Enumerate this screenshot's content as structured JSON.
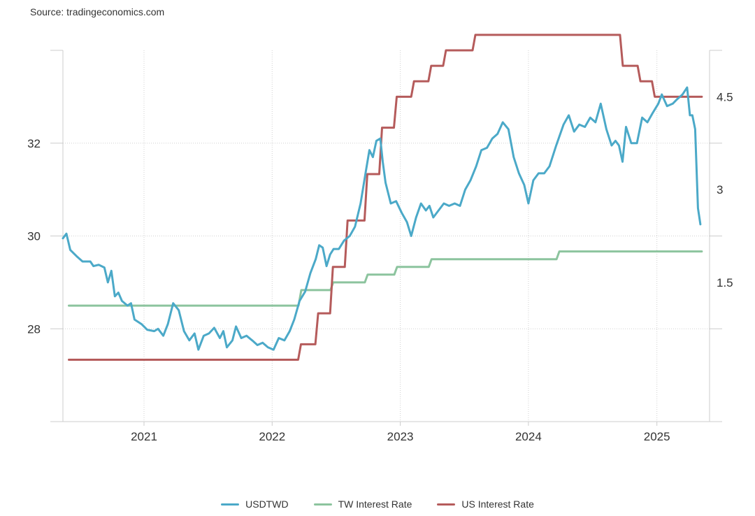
{
  "source": "Source: tradingeconomics.com",
  "chart_data": {
    "type": "line",
    "x_ticks": [
      "2021",
      "2022",
      "2023",
      "2024",
      "2025"
    ],
    "left_axis": {
      "ticks": [
        28,
        30,
        32
      ],
      "tick_labels": [
        "28",
        "30",
        "32"
      ],
      "ylim": [
        26,
        34
      ]
    },
    "right_axis": {
      "ticks": [
        1.5,
        3,
        4.5
      ],
      "tick_labels": [
        "1.5",
        "3",
        "4.5"
      ],
      "ylim": [
        -0.75,
        5.25
      ]
    },
    "xlim": [
      "2020-05-15",
      "2025-05-31"
    ],
    "grid": true,
    "legend_position": "bottom",
    "series": [
      {
        "name": "USDTWD",
        "axis": "left",
        "color": "#4ba9c8",
        "points": [
          [
            "2020-05-15",
            29.95
          ],
          [
            "2020-05-25",
            30.05
          ],
          [
            "2020-06-05",
            29.7
          ],
          [
            "2020-06-25",
            29.55
          ],
          [
            "2020-07-10",
            29.45
          ],
          [
            "2020-08-01",
            29.45
          ],
          [
            "2020-08-10",
            29.35
          ],
          [
            "2020-08-25",
            29.38
          ],
          [
            "2020-09-10",
            29.32
          ],
          [
            "2020-09-20",
            29.0
          ],
          [
            "2020-09-30",
            29.25
          ],
          [
            "2020-10-10",
            28.7
          ],
          [
            "2020-10-20",
            28.78
          ],
          [
            "2020-10-30",
            28.6
          ],
          [
            "2020-11-15",
            28.5
          ],
          [
            "2020-11-25",
            28.55
          ],
          [
            "2020-12-05",
            28.2
          ],
          [
            "2020-12-25",
            28.1
          ],
          [
            "2021-01-10",
            27.98
          ],
          [
            "2021-01-30",
            27.95
          ],
          [
            "2021-02-10",
            28.0
          ],
          [
            "2021-02-25",
            27.85
          ],
          [
            "2021-03-10",
            28.1
          ],
          [
            "2021-03-25",
            28.55
          ],
          [
            "2021-04-10",
            28.4
          ],
          [
            "2021-04-25",
            27.95
          ],
          [
            "2021-05-10",
            27.75
          ],
          [
            "2021-05-25",
            27.9
          ],
          [
            "2021-06-05",
            27.55
          ],
          [
            "2021-06-20",
            27.85
          ],
          [
            "2021-07-05",
            27.9
          ],
          [
            "2021-07-20",
            28.02
          ],
          [
            "2021-08-05",
            27.8
          ],
          [
            "2021-08-15",
            27.95
          ],
          [
            "2021-08-25",
            27.6
          ],
          [
            "2021-09-10",
            27.75
          ],
          [
            "2021-09-20",
            28.05
          ],
          [
            "2021-10-05",
            27.8
          ],
          [
            "2021-10-20",
            27.85
          ],
          [
            "2021-11-05",
            27.75
          ],
          [
            "2021-11-20",
            27.65
          ],
          [
            "2021-12-05",
            27.7
          ],
          [
            "2021-12-20",
            27.6
          ],
          [
            "2022-01-05",
            27.55
          ],
          [
            "2022-01-20",
            27.8
          ],
          [
            "2022-02-05",
            27.75
          ],
          [
            "2022-02-20",
            27.95
          ],
          [
            "2022-03-05",
            28.2
          ],
          [
            "2022-03-20",
            28.6
          ],
          [
            "2022-04-05",
            28.8
          ],
          [
            "2022-04-20",
            29.2
          ],
          [
            "2022-05-05",
            29.5
          ],
          [
            "2022-05-15",
            29.8
          ],
          [
            "2022-05-25",
            29.75
          ],
          [
            "2022-06-05",
            29.35
          ],
          [
            "2022-06-15",
            29.6
          ],
          [
            "2022-06-25",
            29.72
          ],
          [
            "2022-07-10",
            29.72
          ],
          [
            "2022-07-25",
            29.9
          ],
          [
            "2022-08-10",
            30.0
          ],
          [
            "2022-08-25",
            30.2
          ],
          [
            "2022-09-10",
            30.7
          ],
          [
            "2022-09-25",
            31.4
          ],
          [
            "2022-10-05",
            31.85
          ],
          [
            "2022-10-15",
            31.7
          ],
          [
            "2022-10-25",
            32.05
          ],
          [
            "2022-11-05",
            32.1
          ],
          [
            "2022-11-12",
            31.6
          ],
          [
            "2022-11-20",
            31.15
          ],
          [
            "2022-12-05",
            30.7
          ],
          [
            "2022-12-20",
            30.75
          ],
          [
            "2023-01-05",
            30.5
          ],
          [
            "2023-01-20",
            30.3
          ],
          [
            "2023-02-01",
            30.0
          ],
          [
            "2023-02-15",
            30.4
          ],
          [
            "2023-03-01",
            30.7
          ],
          [
            "2023-03-15",
            30.55
          ],
          [
            "2023-03-25",
            30.65
          ],
          [
            "2023-04-05",
            30.4
          ],
          [
            "2023-04-20",
            30.55
          ],
          [
            "2023-05-05",
            30.7
          ],
          [
            "2023-05-20",
            30.65
          ],
          [
            "2023-06-05",
            30.7
          ],
          [
            "2023-06-20",
            30.65
          ],
          [
            "2023-07-05",
            31.0
          ],
          [
            "2023-07-20",
            31.2
          ],
          [
            "2023-08-05",
            31.5
          ],
          [
            "2023-08-20",
            31.85
          ],
          [
            "2023-09-05",
            31.9
          ],
          [
            "2023-09-20",
            32.1
          ],
          [
            "2023-10-05",
            32.2
          ],
          [
            "2023-10-20",
            32.45
          ],
          [
            "2023-11-05",
            32.3
          ],
          [
            "2023-11-20",
            31.7
          ],
          [
            "2023-12-05",
            31.35
          ],
          [
            "2023-12-20",
            31.1
          ],
          [
            "2024-01-01",
            30.7
          ],
          [
            "2024-01-15",
            31.2
          ],
          [
            "2024-01-30",
            31.35
          ],
          [
            "2024-02-15",
            31.35
          ],
          [
            "2024-03-01",
            31.5
          ],
          [
            "2024-03-20",
            31.95
          ],
          [
            "2024-04-10",
            32.4
          ],
          [
            "2024-04-25",
            32.6
          ],
          [
            "2024-05-10",
            32.25
          ],
          [
            "2024-05-25",
            32.4
          ],
          [
            "2024-06-10",
            32.35
          ],
          [
            "2024-06-25",
            32.55
          ],
          [
            "2024-07-10",
            32.45
          ],
          [
            "2024-07-25",
            32.85
          ],
          [
            "2024-08-10",
            32.3
          ],
          [
            "2024-08-25",
            31.95
          ],
          [
            "2024-09-05",
            32.05
          ],
          [
            "2024-09-15",
            31.95
          ],
          [
            "2024-09-25",
            31.6
          ],
          [
            "2024-10-05",
            32.35
          ],
          [
            "2024-10-20",
            32.0
          ],
          [
            "2024-11-05",
            32.0
          ],
          [
            "2024-11-20",
            32.55
          ],
          [
            "2024-12-05",
            32.45
          ],
          [
            "2024-12-20",
            32.65
          ],
          [
            "2025-01-05",
            32.85
          ],
          [
            "2025-01-15",
            33.05
          ],
          [
            "2025-01-30",
            32.8
          ],
          [
            "2025-02-15",
            32.85
          ],
          [
            "2025-02-28",
            32.95
          ],
          [
            "2025-03-15",
            33.05
          ],
          [
            "2025-03-28",
            33.2
          ],
          [
            "2025-04-05",
            32.6
          ],
          [
            "2025-04-12",
            32.6
          ],
          [
            "2025-04-20",
            32.3
          ],
          [
            "2025-04-28",
            30.6
          ],
          [
            "2025-05-05",
            30.25
          ]
        ]
      },
      {
        "name": "TW Interest Rate",
        "axis": "right",
        "color": "#8cc49e",
        "steps": [
          [
            "2020-06-01",
            1.125
          ],
          [
            "2022-03-17",
            1.375
          ],
          [
            "2022-06-16",
            1.5
          ],
          [
            "2022-09-22",
            1.625
          ],
          [
            "2022-12-15",
            1.75
          ],
          [
            "2023-03-23",
            1.875
          ],
          [
            "2024-03-21",
            2.0
          ],
          [
            "2025-05-01",
            2.0
          ]
        ]
      },
      {
        "name": "US Interest Rate",
        "axis": "right",
        "color": "#b55b5b",
        "steps": [
          [
            "2020-06-01",
            0.25
          ],
          [
            "2022-03-16",
            0.5
          ],
          [
            "2022-05-04",
            1.0
          ],
          [
            "2022-06-15",
            1.75
          ],
          [
            "2022-07-27",
            2.5
          ],
          [
            "2022-09-21",
            3.25
          ],
          [
            "2022-11-02",
            4.0
          ],
          [
            "2022-12-14",
            4.5
          ],
          [
            "2023-02-01",
            4.75
          ],
          [
            "2023-03-22",
            5.0
          ],
          [
            "2023-05-03",
            5.25
          ],
          [
            "2023-07-26",
            5.5
          ],
          [
            "2024-09-18",
            5.0
          ],
          [
            "2024-11-07",
            4.75
          ],
          [
            "2024-12-18",
            4.5
          ],
          [
            "2025-05-01",
            4.5
          ]
        ]
      }
    ]
  }
}
